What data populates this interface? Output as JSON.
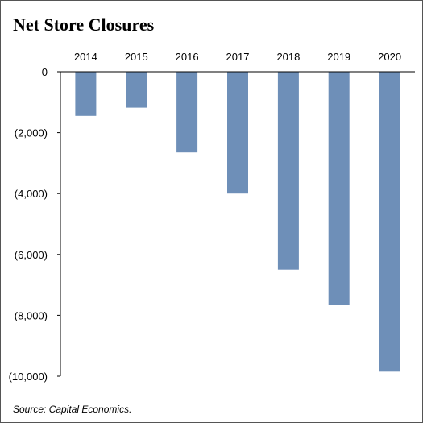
{
  "chart_data": {
    "type": "bar",
    "title": "Net Store Closures",
    "xlabel": "",
    "ylabel": "",
    "categories": [
      "2014",
      "2015",
      "2016",
      "2017",
      "2018",
      "2019",
      "2020"
    ],
    "values": [
      -1450,
      -1180,
      -2650,
      -4000,
      -6500,
      -7650,
      -9850
    ],
    "ylim": [
      -10000,
      0
    ],
    "yticks": [
      0,
      -2000,
      -4000,
      -6000,
      -8000,
      -10000
    ],
    "ytick_labels": [
      "0",
      "(2,000)",
      "(4,000)",
      "(6,000)",
      "(8,000)",
      "(10,000)"
    ],
    "x_axis_position": "top",
    "grid": false,
    "legend": "none",
    "bar_color": "#6e8fb8",
    "source": "Source: Capital Economics."
  }
}
